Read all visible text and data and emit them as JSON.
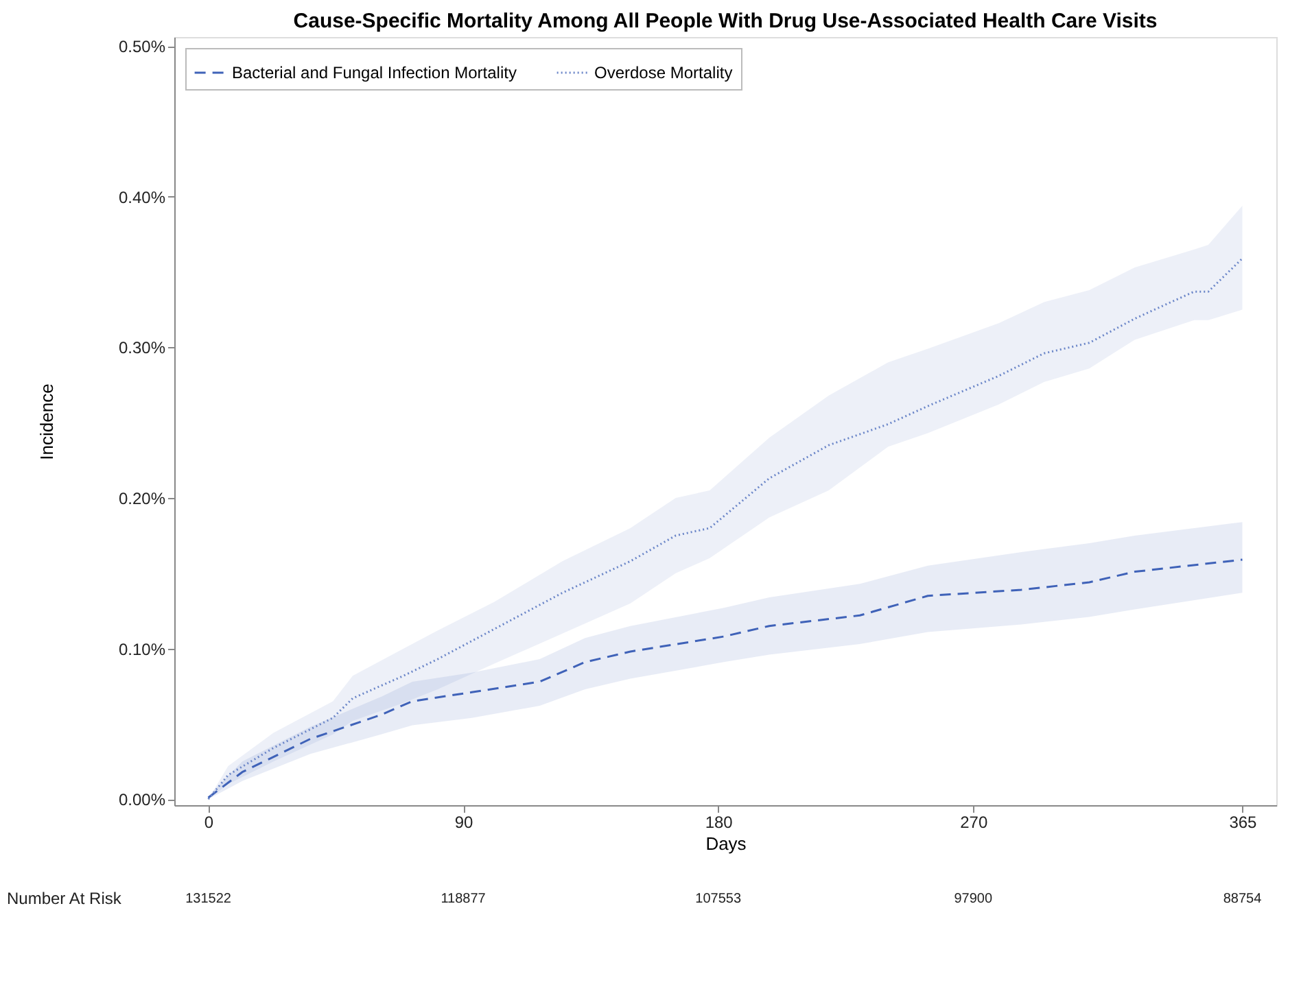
{
  "chart_data": {
    "type": "line",
    "title": "Cause-Specific Mortality Among All People With Drug Use-Associated Health Care Visits",
    "xlabel": "Days",
    "ylabel": "Incidence",
    "xlim": [
      -12,
      377
    ],
    "xticks": [
      0,
      90,
      180,
      270,
      365
    ],
    "ylim": [
      -0.004,
      0.506
    ],
    "yticks": [
      {
        "value": 0,
        "label": "0.00%"
      },
      {
        "value": 0.1,
        "label": "0.10%"
      },
      {
        "value": 0.2,
        "label": "0.20%"
      },
      {
        "value": 0.3,
        "label": "0.30%"
      },
      {
        "value": 0.4,
        "label": "0.40%"
      },
      {
        "value": 0.5,
        "label": "0.50%"
      }
    ],
    "grid": false,
    "legend": "top left",
    "series": [
      {
        "name": "Bacterial and Fungal Infection Mortality",
        "color": "#3f62b8",
        "line_style": "dashed",
        "x": [
          0,
          12,
          36,
          61,
          72,
          93,
          117,
          133,
          149,
          182,
          198,
          230,
          254,
          287,
          311,
          327,
          365
        ],
        "values": [
          0.001,
          0.018,
          0.04,
          0.056,
          0.065,
          0.071,
          0.078,
          0.091,
          0.098,
          0.108,
          0.115,
          0.122,
          0.135,
          0.139,
          0.144,
          0.151,
          0.159
        ],
        "lower": [
          0,
          0.012,
          0.03,
          0.043,
          0.049,
          0.054,
          0.062,
          0.073,
          0.08,
          0.091,
          0.096,
          0.103,
          0.111,
          0.116,
          0.121,
          0.126,
          0.137
        ],
        "upper": [
          0.002,
          0.025,
          0.048,
          0.068,
          0.078,
          0.084,
          0.093,
          0.107,
          0.115,
          0.127,
          0.134,
          0.143,
          0.155,
          0.164,
          0.17,
          0.175,
          0.184
        ]
      },
      {
        "name": "Overdose Mortality",
        "color": "#6b86c8",
        "line_style": "dotted",
        "x": [
          0,
          7,
          23,
          44,
          51,
          69,
          81,
          101,
          125,
          149,
          165,
          177,
          198,
          219,
          240,
          254,
          279,
          295,
          311,
          327,
          348,
          353,
          365
        ],
        "values": [
          0,
          0.016,
          0.034,
          0.054,
          0.067,
          0.082,
          0.093,
          0.113,
          0.137,
          0.158,
          0.175,
          0.18,
          0.213,
          0.235,
          0.249,
          0.261,
          0.281,
          0.296,
          0.303,
          0.319,
          0.337,
          0.337,
          0.359
        ],
        "lower": [
          0,
          0.01,
          0.025,
          0.043,
          0.052,
          0.064,
          0.073,
          0.09,
          0.11,
          0.13,
          0.15,
          0.16,
          0.187,
          0.205,
          0.234,
          0.243,
          0.262,
          0.277,
          0.286,
          0.305,
          0.318,
          0.318,
          0.325
        ],
        "upper": [
          0,
          0.022,
          0.044,
          0.065,
          0.082,
          0.1,
          0.112,
          0.131,
          0.158,
          0.18,
          0.2,
          0.205,
          0.24,
          0.268,
          0.29,
          0.299,
          0.316,
          0.33,
          0.338,
          0.353,
          0.365,
          0.368,
          0.394
        ]
      }
    ],
    "annotations": [
      "Number At Risk",
      "131522",
      "118877",
      "107553",
      "97900",
      "88754"
    ]
  }
}
